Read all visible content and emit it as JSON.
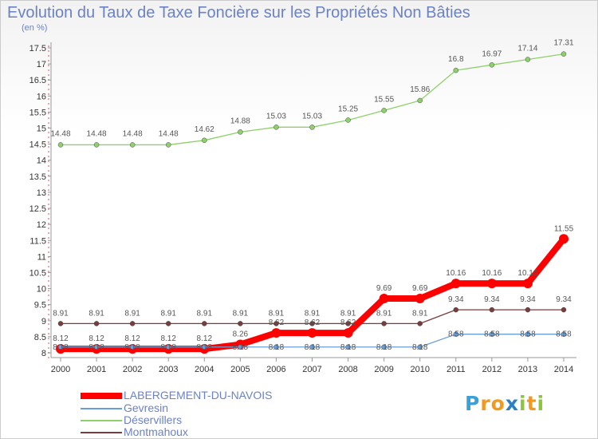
{
  "header": {
    "title": "Evolution du Taux de Taxe Foncière sur les Propriétés Non Bâties",
    "unit": "(en %)"
  },
  "logo": {
    "text": "Proxiti",
    "colors": [
      "#3aa0d8",
      "#f39a1e",
      "#f39a1e",
      "#2a7fc7",
      "#8cc63f",
      "#f39a1e",
      "#8cc63f"
    ]
  },
  "chart_data": {
    "type": "line",
    "title": "Evolution du Taux de Taxe Foncière sur les Propriétés Non Bâties",
    "ylabel": "(en %)",
    "xlabel": "",
    "x": [
      "2000",
      "2001",
      "2002",
      "2003",
      "2004",
      "2005",
      "2006",
      "2007",
      "2008",
      "2009",
      "2010",
      "2011",
      "2012",
      "2013",
      "2014"
    ],
    "yticks": [
      "8",
      "8.5",
      "9",
      "9.5",
      "10",
      "10.5",
      "11",
      "11.5",
      "12",
      "12.5",
      "13",
      "13.5",
      "14",
      "14.5",
      "15",
      "15.5",
      "16",
      "16.5",
      "17",
      "17.5"
    ],
    "ylim": [
      8,
      17.5
    ],
    "grid": false,
    "legend_position": "bottom-left",
    "series": [
      {
        "name": "LABERGEMENT-DU-NAVOIS",
        "color": "#ff0000",
        "values": [
          8.12,
          8.12,
          8.12,
          8.12,
          8.12,
          8.26,
          8.62,
          8.62,
          8.62,
          9.69,
          9.69,
          10.16,
          10.16,
          10.16,
          11.55
        ],
        "labels": [
          "8.12",
          "8.12",
          "8.12",
          "8.12",
          "8.12",
          "8.26",
          "8.62",
          "8.62",
          "8.62",
          "9.69",
          "9.69",
          "10.16",
          "10.16",
          "10.16",
          "11.55"
        ]
      },
      {
        "name": "Gevresin",
        "color": "#6a9ed6",
        "values": [
          8.18,
          8.18,
          8.18,
          8.18,
          8.18,
          8.18,
          8.18,
          8.18,
          8.18,
          8.18,
          8.18,
          8.58,
          8.58,
          8.58,
          8.58
        ],
        "labels": [
          "8.18",
          "8.18",
          "8.18",
          "8.18",
          "8.18",
          "8.18",
          "8.18",
          "8.18",
          "8.18",
          "8.18",
          "8.18",
          "8.58",
          "8.58",
          "8.58",
          "8.58"
        ]
      },
      {
        "name": "Déservillers",
        "color": "#8ed16a",
        "values": [
          14.48,
          14.48,
          14.48,
          14.48,
          14.62,
          14.88,
          15.03,
          15.03,
          15.25,
          15.55,
          15.86,
          16.8,
          16.97,
          17.14,
          17.31
        ],
        "labels": [
          "14.48",
          "14.48",
          "14.48",
          "14.48",
          "14.62",
          "14.88",
          "15.03",
          "15.03",
          "15.25",
          "15.55",
          "15.86",
          "16.8",
          "16.97",
          "17.14",
          "17.31"
        ]
      },
      {
        "name": "Montmahoux",
        "color": "#7a3c3c",
        "values": [
          8.91,
          8.91,
          8.91,
          8.91,
          8.91,
          8.91,
          8.91,
          8.91,
          8.91,
          8.91,
          8.91,
          9.34,
          9.34,
          9.34,
          9.34
        ],
        "labels": [
          "8.91",
          "8.91",
          "8.91",
          "8.91",
          "8.91",
          "8.91",
          "8.91",
          "8.91",
          "8.91",
          "8.91",
          "8.91",
          "9.34",
          "9.34",
          "9.34",
          "9.34"
        ]
      }
    ]
  }
}
